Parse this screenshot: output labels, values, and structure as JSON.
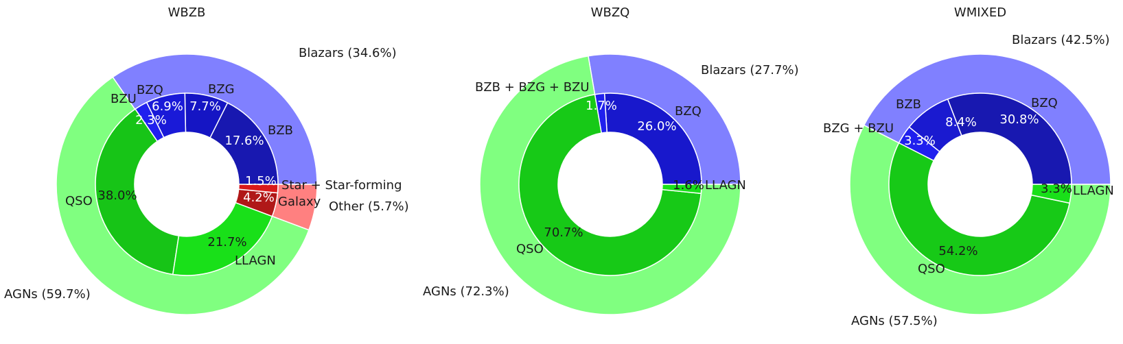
{
  "chart_data": [
    {
      "type": "pie",
      "title": "WBZB",
      "outer": [
        {
          "label": "Blazars (34.6%)",
          "value": 34.6,
          "color": "#8080ff"
        },
        {
          "label": "AGNs (59.7%)",
          "value": 59.7,
          "color": "#80ff80"
        },
        {
          "label": "Other (5.7%)",
          "value": 5.7,
          "color": "#ff8080"
        }
      ],
      "inner": [
        {
          "label": "BZB",
          "pct": "17.6%",
          "value": 17.6,
          "color": "#1818b0",
          "pct_color": "#ffffff"
        },
        {
          "label": "BZG",
          "pct": "7.7%",
          "value": 7.7,
          "color": "#1515c4",
          "pct_color": "#ffffff"
        },
        {
          "label": "BZQ",
          "pct": "6.9%",
          "value": 6.9,
          "color": "#1a1ad8",
          "pct_color": "#ffffff"
        },
        {
          "label": "BZU",
          "pct": "2.3%",
          "value": 2.3,
          "color": "#2020ee",
          "pct_color": "#ffffff"
        },
        {
          "label": "QSO",
          "pct": "38.0%",
          "value": 38.0,
          "color": "#17c417",
          "pct_color": "#1a1a1a"
        },
        {
          "label": "LLAGN",
          "pct": "21.7%",
          "value": 21.7,
          "color": "#19e019",
          "pct_color": "#1a1a1a"
        },
        {
          "label": "Galaxy",
          "pct": "4.2%",
          "value": 4.2,
          "color": "#b01818",
          "pct_color": "#ffffff"
        },
        {
          "label": "Star + Star-forming",
          "pct": "1.5%",
          "value": 1.5,
          "color": "#d81a1a",
          "pct_color": "#ffffff"
        }
      ]
    },
    {
      "type": "pie",
      "title": "WBZQ",
      "outer": [
        {
          "label": "Blazars (27.7%)",
          "value": 27.7,
          "color": "#8080ff"
        },
        {
          "label": "AGNs (72.3%)",
          "value": 72.3,
          "color": "#80ff80"
        }
      ],
      "inner": [
        {
          "label": "BZQ",
          "pct": "26.0%",
          "value": 26.0,
          "color": "#1818cc",
          "pct_color": "#ffffff"
        },
        {
          "label": "BZB + BZG + BZU",
          "pct": "1.7%",
          "value": 1.7,
          "color": "#2020ee",
          "pct_color": "#ffffff"
        },
        {
          "label": "QSO",
          "pct": "70.7%",
          "value": 70.7,
          "color": "#17c917",
          "pct_color": "#1a1a1a"
        },
        {
          "label": "LLAGN",
          "pct": "1.6%",
          "value": 1.6,
          "color": "#19e019",
          "pct_color": "#1a1a1a"
        }
      ]
    },
    {
      "type": "pie",
      "title": "WMIXED",
      "outer": [
        {
          "label": "Blazars (42.5%)",
          "value": 42.5,
          "color": "#8080ff"
        },
        {
          "label": "AGNs (57.5%)",
          "value": 57.5,
          "color": "#80ff80"
        }
      ],
      "inner": [
        {
          "label": "BZQ",
          "pct": "30.8%",
          "value": 30.8,
          "color": "#1818b0",
          "pct_color": "#ffffff"
        },
        {
          "label": "BZB",
          "pct": "8.4%",
          "value": 8.4,
          "color": "#1a1ad0",
          "pct_color": "#ffffff"
        },
        {
          "label": "BZG + BZU",
          "pct": "3.3%",
          "value": 3.3,
          "color": "#2020ee",
          "pct_color": "#ffffff"
        },
        {
          "label": "QSO",
          "pct": "54.2%",
          "value": 54.2,
          "color": "#17c917",
          "pct_color": "#1a1a1a"
        },
        {
          "label": "LLAGN",
          "pct": "3.3%",
          "value": 3.3,
          "color": "#19e019",
          "pct_color": "#1a1a1a"
        }
      ]
    }
  ]
}
